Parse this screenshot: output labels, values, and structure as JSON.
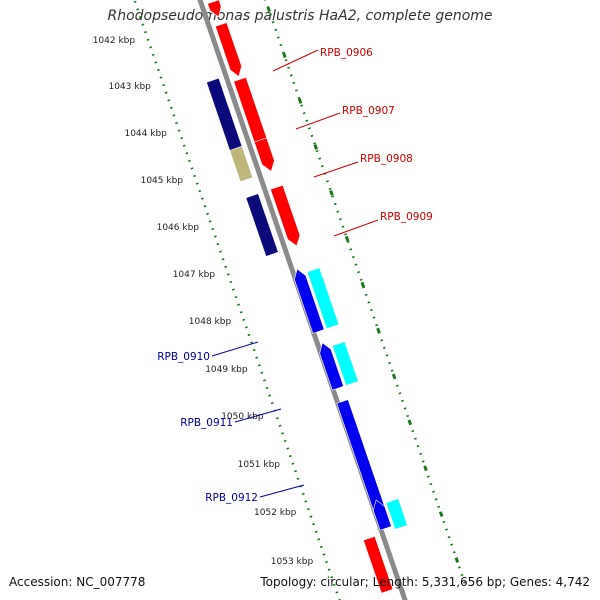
{
  "title": "Rhodopseudomonas palustris HaA2, complete genome",
  "accession": "Accession: NC_007778",
  "topology": "Topology: circular; Length: 5,331,656 bp; Genes: 4,742",
  "colors": {
    "backbone": "#8a8a8a",
    "tick": "#1a7a1a",
    "forward_gene": "#ff0000",
    "forward_cds": "#0a0a7a",
    "forward_rna": "#bdb57a",
    "reverse_gene": "#00ffff",
    "reverse_cds": "#0000ee",
    "forward_label": "#cc0000",
    "reverse_label": "#000099"
  },
  "chart_data": {
    "type": "genome_map",
    "kbp_ticks": [
      "1042 kbp",
      "1043 kbp",
      "1044 kbp",
      "1045 kbp",
      "1046 kbp",
      "1047 kbp",
      "1048 kbp",
      "1049 kbp",
      "1050 kbp",
      "1051 kbp",
      "1052 kbp",
      "1053 kbp"
    ],
    "labels": [
      {
        "text": "RPB_0906",
        "strand": "forward"
      },
      {
        "text": "RPB_0907",
        "strand": "forward"
      },
      {
        "text": "RPB_0908",
        "strand": "forward"
      },
      {
        "text": "RPB_0909",
        "strand": "forward"
      },
      {
        "text": "RPB_0910",
        "strand": "reverse"
      },
      {
        "text": "RPB_0911",
        "strand": "reverse"
      },
      {
        "text": "RPB_0912",
        "strand": "reverse"
      }
    ]
  }
}
